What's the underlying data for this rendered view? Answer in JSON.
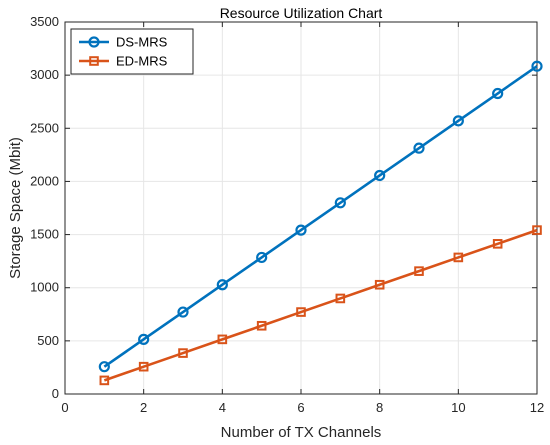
{
  "chart_data": {
    "type": "line",
    "title": "Resource Utilization Chart",
    "xlabel": "Number of TX Channels",
    "ylabel": "Storage Space (Mbit)",
    "xlim": [
      0,
      12
    ],
    "ylim": [
      0,
      3500
    ],
    "xticks": [
      0,
      2,
      4,
      6,
      8,
      10,
      12
    ],
    "yticks": [
      0,
      500,
      1000,
      1500,
      2000,
      2500,
      3000,
      3500
    ],
    "grid": true,
    "legend_position": "top-left",
    "x": [
      1,
      2,
      3,
      4,
      5,
      6,
      7,
      8,
      9,
      10,
      11,
      12
    ],
    "series": [
      {
        "name": "DS-MRS",
        "color": "#0072BD",
        "marker": "circle",
        "values": [
          257,
          514,
          771,
          1028,
          1285,
          1542,
          1799,
          2056,
          2313,
          2570,
          2827,
          3084
        ]
      },
      {
        "name": "ED-MRS",
        "color": "#D95319",
        "marker": "square",
        "values": [
          128,
          257,
          385,
          514,
          642,
          771,
          899,
          1028,
          1156,
          1285,
          1413,
          1542
        ]
      }
    ]
  }
}
